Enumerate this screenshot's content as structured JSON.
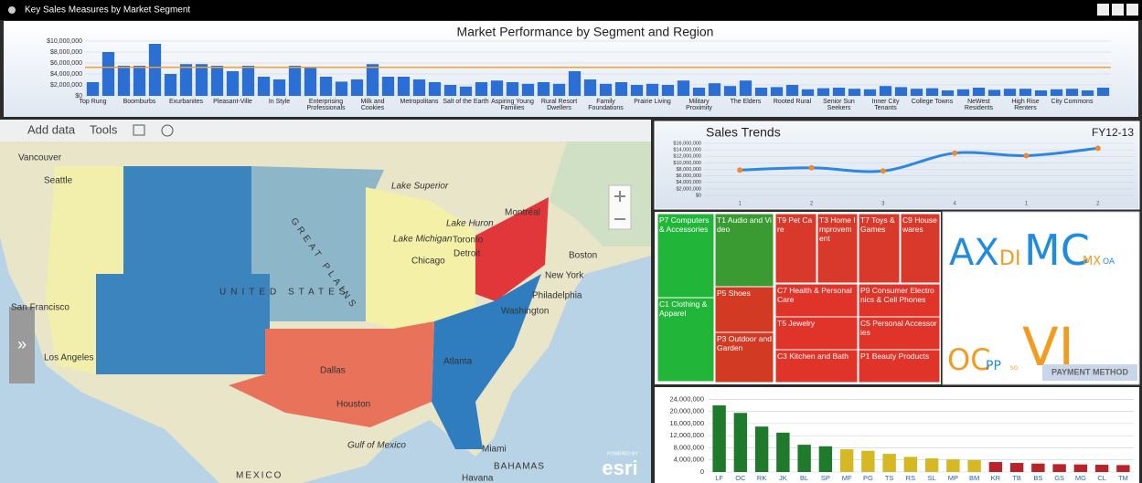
{
  "window": {
    "title": "Key Sales Measures by Market Segment"
  },
  "chart_data": [
    {
      "type": "bar",
      "title": "Market Performance by Segment and Region",
      "categories": [
        "Top Rung",
        null,
        null,
        "Boomburbs",
        null,
        null,
        "Exurbanites",
        null,
        null,
        "Pleasant-Ville",
        null,
        null,
        "In Style",
        null,
        null,
        "Enterprising Professionals",
        null,
        null,
        "Milk and Cookies",
        null,
        null,
        "Metropolitans",
        null,
        null,
        "Salt of the Earth",
        null,
        null,
        "Aspiring Young Families",
        null,
        null,
        "Rural Resort Dwellers",
        null,
        null,
        "Family Foundations",
        null,
        null,
        "Prairie Living",
        null,
        null,
        "Military Proximity",
        null,
        null,
        "The Elders",
        null,
        null,
        "Rooted Rural",
        null,
        null,
        "Senior Sun Seekers",
        null,
        null,
        "Inner City Tenants",
        null,
        null,
        "College Towns",
        null,
        null,
        "NeWest Residents",
        null,
        null,
        "High Rise Renters",
        null,
        null,
        "City Commons",
        null,
        null
      ],
      "values": [
        2500000,
        8000000,
        5500000,
        5500000,
        9500000,
        4000000,
        5800000,
        5800000,
        5500000,
        4500000,
        5500000,
        3500000,
        3000000,
        5500000,
        5300000,
        3500000,
        2600000,
        3000000,
        5800000,
        3500000,
        3500000,
        3000000,
        2500000,
        2000000,
        1700000,
        2500000,
        2800000,
        2500000,
        2200000,
        2500000,
        2200000,
        4500000,
        3000000,
        2200000,
        2500000,
        2000000,
        2200000,
        2000000,
        2800000,
        1500000,
        2300000,
        1800000,
        2800000,
        1500000,
        1600000,
        2000000,
        1200000,
        1400000,
        1500000,
        1300000,
        1200000,
        1800000,
        1600000,
        1300000,
        1400000,
        1000000,
        1200000,
        1500000,
        1100000,
        1300000,
        1300000,
        1000000,
        1200000,
        1300000,
        1000000,
        1500000
      ],
      "color": "#2b6fd4",
      "reference_line": 5200000,
      "reference_color": "#f0a030",
      "ylim": [
        0,
        11000000
      ],
      "yticks": [
        {
          "value": 0,
          "label": "$0"
        },
        {
          "value": 2000000,
          "label": "$2,000,000"
        },
        {
          "value": 4000000,
          "label": "$4,000,000"
        },
        {
          "value": 6000000,
          "label": "$6,000,000"
        },
        {
          "value": 8000000,
          "label": "$8,000,000"
        },
        {
          "value": 10000000,
          "label": "$10,000,000"
        }
      ],
      "grid": true
    },
    {
      "type": "line",
      "title": "Sales Trends",
      "subtitle": "FY12-13",
      "categories": [
        "1",
        "2",
        "3",
        "4",
        "1",
        "2"
      ],
      "values": [
        7800000,
        8500000,
        7500000,
        13000000,
        12200000,
        14500000
      ],
      "color": "#2f86e0",
      "marker_color": "#f08a30",
      "ylim": [
        0,
        16000000
      ],
      "yticks": [
        {
          "value": 0,
          "label": "$0"
        },
        {
          "value": 2000000,
          "label": "$2,000,000"
        },
        {
          "value": 4000000,
          "label": "$4,000,000"
        },
        {
          "value": 6000000,
          "label": "$6,000,000"
        },
        {
          "value": 8000000,
          "label": "$8,000,000"
        },
        {
          "value": 10000000,
          "label": "$10,000,000"
        },
        {
          "value": 12000000,
          "label": "$12,000,000"
        },
        {
          "value": 14000000,
          "label": "$14,000,000"
        },
        {
          "value": 16000000,
          "label": "$16,000,000"
        }
      ],
      "grid": true
    },
    {
      "type": "bar",
      "categories": [
        "LF",
        "OC",
        "RK",
        "JK",
        "BL",
        "SP",
        "MF",
        "PG",
        "TS",
        "RS",
        "SL",
        "MP",
        "BM",
        "KR",
        "TB",
        "BS",
        "GS",
        "MG",
        "CL",
        "TM"
      ],
      "values": [
        22000000,
        19500000,
        15000000,
        13000000,
        9000000,
        8500000,
        7500000,
        7000000,
        6000000,
        5000000,
        4500000,
        4200000,
        4000000,
        3300000,
        3000000,
        2800000,
        2600000,
        2500000,
        2400000,
        2300000
      ],
      "colors": [
        "#1f7a2c",
        "#1f7a2c",
        "#1f7a2c",
        "#1f7a2c",
        "#1f7a2c",
        "#1f7a2c",
        "#d6b824",
        "#d6b824",
        "#d6b824",
        "#d6b824",
        "#d6b824",
        "#d6b824",
        "#d6b824",
        "#b8242a",
        "#b8242a",
        "#b8242a",
        "#b8242a",
        "#b8242a",
        "#b8242a",
        "#b8242a"
      ],
      "ylim": [
        0,
        25000000
      ],
      "yticks": [
        0,
        {
          "value": 4000000,
          "label": "4,000,000"
        },
        {
          "value": 8000000,
          "label": "8,000,000"
        },
        {
          "value": 12000000,
          "label": "12,000,000"
        },
        {
          "value": 16000000,
          "label": "16,000,000"
        },
        {
          "value": 20000000,
          "label": "20,000,000"
        },
        {
          "value": 24000000,
          "label": "24,000,000"
        }
      ],
      "grid": true
    }
  ],
  "map": {
    "toolbar": [
      "Add data",
      "Tools"
    ],
    "labels": [
      "Vancouver",
      "Seattle",
      "Montréal",
      "Toronto",
      "Detroit",
      "Chicago",
      "Boston",
      "New York",
      "Philadelphia",
      "Washington",
      "San Francisco",
      "Los Angeles",
      "Dallas",
      "Houston",
      "Atlanta",
      "Miami",
      "Gulf of Mexico",
      "MEXICO",
      "BAHAMAS",
      "Havana",
      "UNITED STATES",
      "GREAT PLAINS",
      "Lake Superior",
      "Lake Huron",
      "Lake Michigan"
    ],
    "attribution": [
      "POWERED BY",
      "esri"
    ]
  },
  "treemap": {
    "cells": [
      {
        "label": "P7 Computers & Accessories",
        "color": "#21b53a"
      },
      {
        "label": "C1 Clothing & Apparel",
        "color": "#21b53a"
      },
      {
        "label": "T1 Audio and Video",
        "color": "#3a9b33"
      },
      {
        "label": "P5 Shoes",
        "color": "#d23a24"
      },
      {
        "label": "P3 Outdoor and Garden",
        "color": "#d23a24"
      },
      {
        "label": "T9 Pet Care",
        "color": "#d8392a"
      },
      {
        "label": "T3 Home Improvement",
        "color": "#d8392a"
      },
      {
        "label": "T7 Toys & Games",
        "color": "#d8392a"
      },
      {
        "label": "C9 Housewares",
        "color": "#d8392a"
      },
      {
        "label": "C7 Health & Personal Care",
        "color": "#e0342a"
      },
      {
        "label": "P9 Consumer Electronics & Cell Phones",
        "color": "#e0342a"
      },
      {
        "label": "T5 Jewelry",
        "color": "#e0342a"
      },
      {
        "label": "C5 Personal Accessories",
        "color": "#e0342a"
      },
      {
        "label": "C3 Kitchen and Bath",
        "color": "#e0342a"
      },
      {
        "label": "P1 Beauty Products",
        "color": "#e0342a"
      }
    ]
  },
  "word_cloud": {
    "terms": [
      "AX",
      "DI",
      "MC",
      "MX",
      "OA",
      "OC",
      "PP",
      "SO",
      "VI"
    ],
    "title": "PAYMENT METHOD"
  }
}
